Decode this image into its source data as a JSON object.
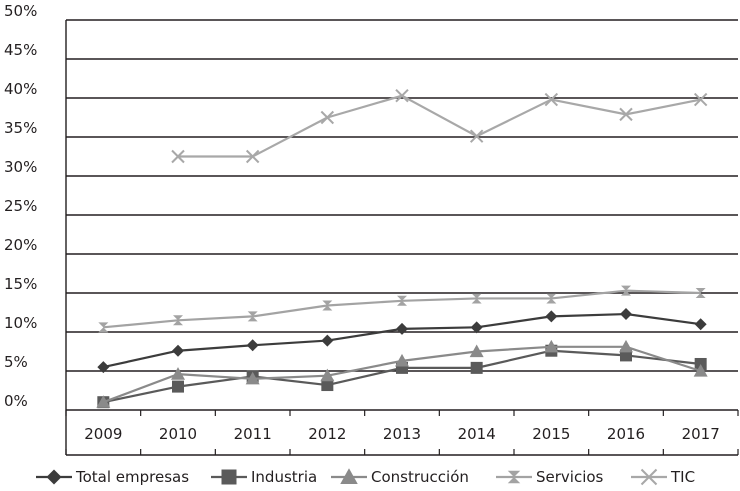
{
  "chart_data": {
    "type": "line",
    "categories": [
      "2009",
      "2010",
      "2011",
      "2012",
      "2013",
      "2014",
      "2015",
      "2016",
      "2017"
    ],
    "y_tick_labels": [
      "0%",
      "5%",
      "10%",
      "15%",
      "20%",
      "25%",
      "30%",
      "35%",
      "40%",
      "45%",
      "50%"
    ],
    "y_tick_values": [
      0,
      5,
      10,
      15,
      20,
      25,
      30,
      35,
      40,
      45,
      50
    ],
    "ylim": [
      0,
      50
    ],
    "grid": "horizontal",
    "legend_position": "bottom",
    "series": [
      {
        "name": "Total empresas",
        "marker": "diamond",
        "color": "#3c3c3c",
        "values": [
          5.5,
          7.6,
          8.3,
          8.9,
          10.4,
          10.6,
          12.0,
          12.3,
          11.0
        ]
      },
      {
        "name": "Industria",
        "marker": "square",
        "color": "#5a5a5a",
        "values": [
          1.0,
          3.0,
          4.3,
          3.2,
          5.4,
          5.4,
          7.6,
          7.0,
          5.9
        ]
      },
      {
        "name": "Construcción",
        "marker": "triangle",
        "color": "#8a8a8a",
        "values": [
          1.0,
          4.6,
          4.0,
          4.4,
          6.3,
          7.5,
          8.1,
          8.1,
          5.0
        ]
      },
      {
        "name": "Servicios",
        "marker": "hourglass",
        "color": "#a3a3a3",
        "values": [
          10.6,
          11.5,
          12.0,
          13.4,
          14.0,
          14.3,
          14.3,
          15.3,
          15.0
        ]
      },
      {
        "name": "TIC",
        "marker": "x",
        "color": "#a8a8a8",
        "values": [
          null,
          32.5,
          32.5,
          37.5,
          40.3,
          35.1,
          39.8,
          37.9,
          39.8
        ]
      }
    ]
  }
}
